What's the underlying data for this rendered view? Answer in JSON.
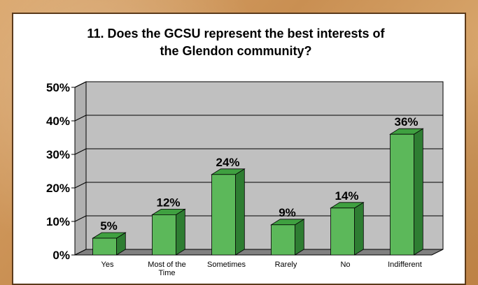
{
  "chart_data": {
    "type": "bar",
    "title_lines": [
      "11. Does the GCSU represent the best interests of",
      "the Glendon community?"
    ],
    "categories": [
      [
        "Yes"
      ],
      [
        "Most of the",
        "Time"
      ],
      [
        "Sometimes"
      ],
      [
        "Rarely"
      ],
      [
        "No"
      ],
      [
        "Indifferent"
      ]
    ],
    "values": [
      5,
      12,
      24,
      9,
      14,
      36
    ],
    "data_labels": [
      "5%",
      "12%",
      "24%",
      "9%",
      "14%",
      "36%"
    ],
    "y_ticks": [
      "0%",
      "10%",
      "20%",
      "30%",
      "40%",
      "50%"
    ],
    "ylim": [
      0,
      50
    ],
    "grid": true,
    "legend": "none",
    "colors": {
      "bar_front": "#5cb85a",
      "bar_top": "#3fa040",
      "bar_side": "#2e7d32",
      "plot_wall": "#c0c0c0",
      "plot_floor": "#808080"
    }
  }
}
